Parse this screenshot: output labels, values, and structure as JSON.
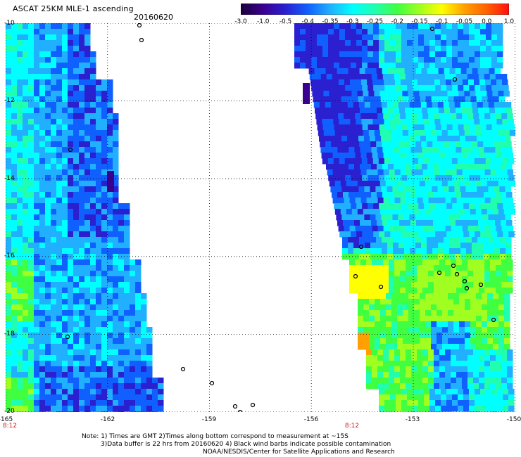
{
  "header": {
    "title": "ASCAT 25KM MLE-1 ascending",
    "date": "20160620"
  },
  "colorbar": {
    "labels": [
      "-3.0",
      "-1.0",
      "-0.5",
      "-0.4",
      "-0.35",
      "-0.3",
      "-0.25",
      "-0.2",
      "-0.15",
      "-0.1",
      "-0.05",
      "0.0",
      "1.0"
    ],
    "colors": [
      "#1a0038",
      "#3a0090",
      "#2a20d0",
      "#1060ff",
      "#20b0ff",
      "#00ffff",
      "#20ffb0",
      "#40ff40",
      "#a0ff20",
      "#ffff00",
      "#ffa000",
      "#ff6000",
      "#ff1010"
    ]
  },
  "axes": {
    "lat_labels": [
      "-10",
      "-12",
      "-14",
      "-16",
      "-18",
      "-20"
    ],
    "lon_labels": [
      "-165",
      "-162",
      "-159",
      "-156",
      "-153",
      "-150"
    ]
  },
  "time_labels": [
    "8:12",
    "8:12"
  ],
  "notes": {
    "line1": "Note: 1) Times are GMT 2)Times along bottom correspond to measurement at ~15S",
    "line2": "3)Data buffer is 22 hrs from 20160620 4) Black wind barbs indicate possible contamination",
    "line3": "NOAA/NESDIS/Center for Satellite Applications and Research"
  }
}
